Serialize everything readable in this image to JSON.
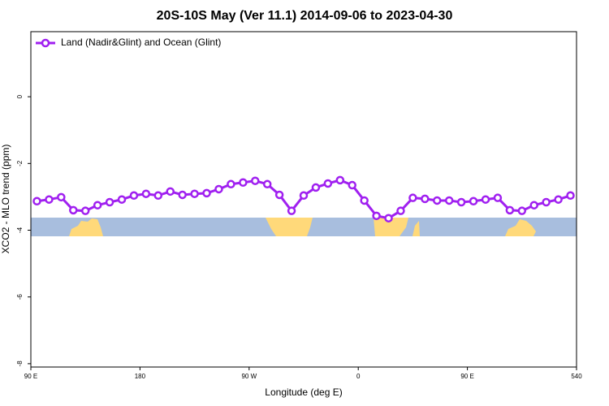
{
  "chart_data": {
    "type": "line",
    "title": "20S-10S May (Ver 11.1)   2014-09-06 to 2023-04-30",
    "xlabel": "Longitude (deg E)",
    "ylabel": "XCO2 - MLO trend (ppm)",
    "x": [
      95,
      105,
      115,
      125,
      135,
      145,
      155,
      165,
      175,
      185,
      195,
      205,
      215,
      225,
      235,
      245,
      255,
      265,
      275,
      285,
      295,
      305,
      315,
      325,
      335,
      345,
      355,
      365,
      375,
      385,
      395,
      405,
      415,
      425,
      435,
      445,
      455,
      465,
      475,
      485,
      495,
      505,
      515,
      525,
      535
    ],
    "series": [
      {
        "name": "Land (Nadir&Glint) and Ocean (Glint)",
        "color": "#a020f0",
        "values": [
          -3.13,
          -3.08,
          -3.01,
          -3.4,
          -3.42,
          -3.25,
          -3.16,
          -3.08,
          -2.96,
          -2.91,
          -2.96,
          -2.84,
          -2.94,
          -2.91,
          -2.89,
          -2.77,
          -2.62,
          -2.57,
          -2.52,
          -2.62,
          -2.94,
          -3.42,
          -2.96,
          -2.72,
          -2.6,
          -2.5,
          -2.65,
          -3.11,
          -3.57,
          -3.64,
          -3.42,
          -3.03,
          -3.06,
          -3.11,
          -3.11,
          -3.16,
          -3.13,
          -3.08,
          -3.03,
          -3.4,
          -3.42,
          -3.25,
          -3.16,
          -3.08,
          -2.96
        ]
      }
    ],
    "xlim": [
      90,
      540
    ],
    "xticks": [
      {
        "value": 90,
        "label": "90 E"
      },
      180,
      {
        "value": 270,
        "label": "90 W"
      },
      {
        "value": 360,
        "label": "0"
      },
      {
        "value": 450,
        "label": "90 E"
      },
      540
    ],
    "ylim": [
      -8.1,
      1.95
    ],
    "yticks": [
      0,
      -2,
      -4,
      -6,
      -8
    ],
    "legend": "top-left"
  }
}
